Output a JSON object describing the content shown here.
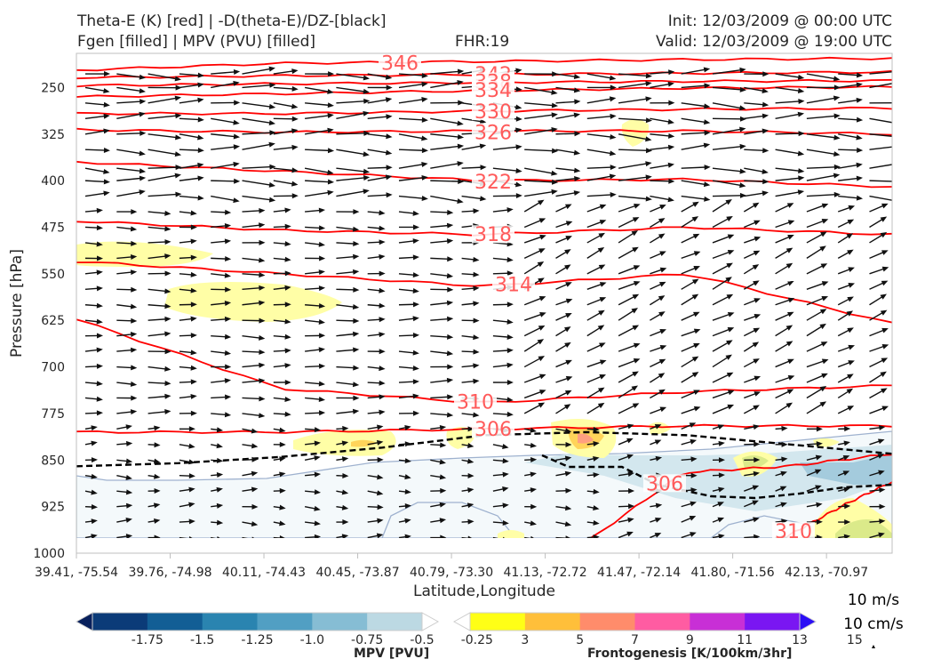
{
  "header": {
    "title_left_1": "Theta-E (K) [red] | -D(theta-E)/DZ-[black]",
    "title_left_2": "Fgen [filled] | MPV (PVU) [filled]",
    "fhr": "FHR:19",
    "init": "Init: 12/03/2009 @ 00:00 UTC",
    "valid": "Valid: 12/03/2009 @ 19:00 UTC"
  },
  "chart_data": {
    "type": "contour",
    "ylabel": "Pressure [hPa]",
    "xlabel": "Latitude,Longitude",
    "y_ticks": [
      250,
      325,
      400,
      475,
      550,
      625,
      700,
      775,
      850,
      925,
      1000
    ],
    "ylim": [
      1000,
      195
    ],
    "x_ticks": [
      "39.41, -75.54",
      "39.76, -74.98",
      "40.11, -74.43",
      "40.45, -73.87",
      "40.79, -73.30",
      "41.13, -72.72",
      "41.47, -72.14",
      "41.80, -71.56",
      "42.13, -70.97"
    ],
    "theta_e_contours": [
      {
        "label": "346",
        "pressure": [
          222,
          211,
          208,
          205,
          203
        ],
        "color": "#ff0000"
      },
      {
        "label": "342",
        "pressure": [
          234,
          231,
          229,
          227,
          225
        ],
        "color": "#ff0000"
      },
      {
        "label": "338",
        "pressure": [
          247,
          244,
          242,
          240,
          239
        ],
        "color": "#ff0000"
      },
      {
        "label": "334",
        "pressure": [
          265,
          260,
          255,
          251,
          249
        ],
        "color": "#ff0000"
      },
      {
        "label": "330",
        "pressure": [
          292,
          292,
          288,
          285,
          283
        ],
        "color": "#ff0000"
      },
      {
        "label": "326",
        "pressure": [
          318,
          322,
          320,
          320,
          325
        ],
        "color": "#ff0000"
      },
      {
        "label": "322",
        "pressure": [
          370,
          385,
          400,
          398,
          410
        ],
        "color": "#ff0000"
      },
      {
        "label": "318",
        "pressure": [
          465,
          480,
          487,
          475,
          487
        ],
        "color": "#ff0000"
      },
      {
        "label": "314",
        "pressure": [
          530,
          550,
          570,
          550,
          630
        ],
        "color": "#ff0000"
      },
      {
        "label": "310",
        "pressure": [
          623,
          735,
          758,
          740,
          730
        ],
        "color": "#ff0000"
      },
      {
        "label": "306",
        "pressure": [
          805,
          805,
          800,
          795,
          795
        ],
        "color": "#ff0000"
      },
      {
        "label": "306",
        "pressure": [
          1000,
          990,
          870,
          860,
          840
        ],
        "color": "#ff0000"
      },
      {
        "label": "310",
        "pressure": [
          1000,
          1000,
          960,
          920,
          885
        ],
        "color": "#ff0000"
      }
    ],
    "neg_dthetae_dz_contour": {
      "style": "dashed",
      "color": "#000000",
      "pressure": [
        860,
        855,
        845,
        830,
        810,
        805,
        810,
        825,
        840
      ]
    },
    "wind_vector_scale": [
      "10 m/s",
      "10 cm/s"
    ],
    "colorbars": [
      {
        "label": "MPV [PVU]",
        "ticks": [
          "-1.75",
          "-1.5",
          "-1.25",
          "-1.0",
          "-0.75",
          "-0.5",
          "-0.25"
        ],
        "colors": [
          "#08205c",
          "#0b3b78",
          "#125e95",
          "#2a84b0",
          "#519fc3",
          "#86bdd4",
          "#bcd9e3",
          "#ffffff"
        ]
      },
      {
        "label": "Frontogenesis [K/100km/3hr]",
        "ticks": [
          "3",
          "5",
          "7",
          "9",
          "11",
          "13",
          "15"
        ],
        "colors": [
          "#ffffff",
          "#ffff16",
          "#ffbf3a",
          "#ff8c6b",
          "#ff5ca2",
          "#c82fd6",
          "#7a16f2",
          "#2b0ef5"
        ]
      }
    ]
  }
}
